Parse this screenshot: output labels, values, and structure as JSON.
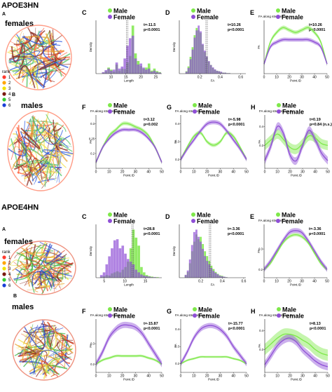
{
  "colors": {
    "male": "#7ee84a",
    "female": "#8f4fd6",
    "overlap": "#9a8fb0",
    "axis": "#222222"
  },
  "legend": {
    "male": "Male",
    "female": "Female"
  },
  "sections": [
    {
      "title": "APOE3HN",
      "letter_left_top": "A",
      "letter_left_bottom": "B",
      "group_top": "females",
      "group_bottom": "males",
      "rank": {
        "title": "rank",
        "items": [
          "1",
          "2",
          "3",
          "4",
          "5",
          "6"
        ],
        "colors": [
          "#ff3b2f",
          "#ffa500",
          "#f2e200",
          "#7a1a10",
          "#33cc33",
          "#1a3fd6"
        ]
      },
      "brain_palette": [
        "#ff5a36",
        "#e8a33a",
        "#f0e04a",
        "#8b2a1e",
        "#55c46a",
        "#2a55e0"
      ],
      "panels": {
        "C": {
          "label": "C",
          "subtitle": "",
          "stat1": "t=-11.5",
          "stat2": "p<0.0001"
        },
        "D": {
          "label": "D",
          "subtitle": "",
          "stat1": "t=10.26",
          "stat2": "p<0.0001"
        },
        "E": {
          "label": "E",
          "subtitle": "FA along streamlines",
          "stat1": "t=10.26",
          "stat2": "p<0.0001"
        },
        "F": {
          "label": "F",
          "subtitle": "FA along streamlines 1",
          "stat1": "t=3.12",
          "stat2": "p=0.002"
        },
        "G": {
          "label": "G",
          "subtitle": "FA along streamlines 2",
          "stat1": "t=-5.98",
          "stat2": "p<0.0001"
        },
        "H": {
          "label": "H",
          "subtitle": "FA along streamlines 6",
          "stat1": "t=0.19",
          "stat2": "p=0.84 (n.s.)"
        }
      }
    },
    {
      "title": "APOE4HN",
      "letter_left_top": "A",
      "letter_left_bottom": "B",
      "group_top": "females",
      "group_bottom": "males",
      "rank": {
        "title": "rank",
        "items": [
          "1",
          "2",
          "3",
          "4",
          "5",
          "6"
        ],
        "colors": [
          "#ff3b2f",
          "#ffa500",
          "#f2e200",
          "#7a1a10",
          "#33cc33",
          "#1a3fd6"
        ]
      },
      "brain_palette": [
        "#e24a2a",
        "#e8a33a",
        "#f0e04a",
        "#8b2a1e",
        "#40b84a",
        "#2a45c8"
      ],
      "panels": {
        "C": {
          "label": "C",
          "subtitle": "",
          "stat1": "t=28.8",
          "stat2": "p<0.0001"
        },
        "D": {
          "label": "D",
          "subtitle": "",
          "stat1": "t=-3.36",
          "stat2": "p<0.0001"
        },
        "E": {
          "label": "E",
          "subtitle": "FA along streamlines",
          "stat1": "t=-3.36",
          "stat2": "p<0.0001"
        },
        "F": {
          "label": "F",
          "subtitle": "FA along streamlines 1",
          "stat1": "t=-15.87",
          "stat2": "p<0.0001"
        },
        "G": {
          "label": "G",
          "subtitle": "FA along streamlines 2",
          "stat1": "t=-15.77",
          "stat2": "p<0.0001"
        },
        "H": {
          "label": "H",
          "subtitle": "FA along streamlines 6",
          "stat1": "t=8.13",
          "stat2": "p<0.0001"
        }
      }
    }
  ],
  "chart_data": [
    {
      "id": "s1_C",
      "type": "bar",
      "xlabel": "Length",
      "ylabel": "Density",
      "xlim": [
        5,
        27
      ],
      "xticks": [
        10,
        15,
        20,
        25
      ],
      "dashed_x": 15.2,
      "bin_start": 7,
      "bin_width": 0.9,
      "series": [
        {
          "name": "Male",
          "values": [
            0.02,
            0.05,
            0.12,
            0.08,
            0.04,
            0.18,
            0.06,
            0.1,
            0.09,
            0.22,
            0.35,
            0.95,
            0.4,
            0.25,
            0.15,
            0.1,
            0.12,
            0.2,
            0.06,
            0.1,
            0.05,
            0.03
          ]
        },
        {
          "name": "Female",
          "values": [
            0.03,
            0.07,
            0.1,
            0.06,
            0.08,
            0.22,
            0.1,
            0.14,
            0.3,
            0.55,
            0.7,
            0.75,
            0.3,
            0.18,
            0.2,
            0.12,
            0.08,
            0.1,
            0.04,
            0.06,
            0.03,
            0.02
          ]
        }
      ]
    },
    {
      "id": "s1_D",
      "type": "bar",
      "xlabel": "FA",
      "ylabel": "Density",
      "xlim": [
        0,
        0.65
      ],
      "xticks": [
        0.2,
        0.4,
        0.6
      ],
      "xticklabels": [
        "0.2",
        "0.4",
        "0.6"
      ],
      "dashed_x": 0.26,
      "bin_start": 0.06,
      "bin_width": 0.02,
      "series": [
        {
          "name": "Male",
          "values": [
            0.05,
            0.15,
            0.35,
            0.55,
            0.8,
            0.95,
            0.9,
            0.85,
            0.6,
            0.45,
            0.35,
            0.25,
            0.18,
            0.12,
            0.08,
            0.06,
            0.05,
            0.03,
            0.02,
            0.02,
            0.01,
            0.01
          ]
        },
        {
          "name": "Female",
          "values": [
            0.04,
            0.12,
            0.3,
            0.5,
            0.75,
            0.9,
            1.0,
            0.88,
            0.62,
            0.48,
            0.36,
            0.26,
            0.18,
            0.13,
            0.09,
            0.06,
            0.05,
            0.04,
            0.02,
            0.02,
            0.01,
            0.01
          ]
        }
      ]
    },
    {
      "id": "s1_E",
      "type": "line",
      "xlabel": "Point.ID",
      "ylabel": "FA",
      "xlim": [
        0,
        50
      ],
      "xticks": [
        0,
        10,
        20,
        30,
        40,
        50
      ],
      "yticks": [],
      "ylim": [
        0.18,
        0.4
      ],
      "x": [
        0,
        5,
        10,
        15,
        20,
        25,
        30,
        35,
        40,
        45,
        50
      ],
      "series": [
        {
          "name": "Male",
          "values": [
            0.22,
            0.31,
            0.35,
            0.37,
            0.36,
            0.35,
            0.36,
            0.37,
            0.35,
            0.31,
            0.22
          ],
          "band": 0.008
        },
        {
          "name": "Female",
          "values": [
            0.22,
            0.29,
            0.31,
            0.32,
            0.32,
            0.32,
            0.32,
            0.32,
            0.31,
            0.29,
            0.22
          ],
          "band": 0.008
        }
      ]
    },
    {
      "id": "s1_F",
      "type": "line",
      "xlabel": "Point.ID",
      "ylabel": "FA",
      "xlim": [
        0,
        50
      ],
      "xticks": [
        0,
        10,
        20,
        30,
        40,
        50
      ],
      "yticks": [
        0.2,
        0.25,
        0.3
      ],
      "ylim": [
        0.15,
        0.33
      ],
      "x": [
        0,
        5,
        10,
        15,
        20,
        25,
        30,
        35,
        40,
        45,
        50
      ],
      "series": [
        {
          "name": "Male",
          "values": [
            0.17,
            0.22,
            0.26,
            0.28,
            0.3,
            0.3,
            0.29,
            0.28,
            0.26,
            0.22,
            0.17
          ],
          "band": 0.006
        },
        {
          "name": "Female",
          "values": [
            0.17,
            0.22,
            0.25,
            0.27,
            0.28,
            0.28,
            0.28,
            0.27,
            0.25,
            0.22,
            0.17
          ],
          "band": 0.006
        }
      ]
    },
    {
      "id": "s1_G",
      "type": "line",
      "xlabel": "Point.ID",
      "ylabel": "FA",
      "xlim": [
        0,
        50
      ],
      "xticks": [
        0,
        10,
        20,
        30,
        40,
        50
      ],
      "yticks": [
        0.2,
        0.3,
        0.4
      ],
      "ylim": [
        0.15,
        0.45
      ],
      "x": [
        0,
        5,
        10,
        15,
        20,
        25,
        30,
        35,
        40,
        45,
        50
      ],
      "series": [
        {
          "name": "Male",
          "values": [
            0.2,
            0.27,
            0.33,
            0.35,
            0.3,
            0.28,
            0.3,
            0.35,
            0.33,
            0.27,
            0.2
          ],
          "band": 0.01
        },
        {
          "name": "Female",
          "values": [
            0.2,
            0.26,
            0.31,
            0.36,
            0.4,
            0.41,
            0.4,
            0.36,
            0.31,
            0.26,
            0.2
          ],
          "band": 0.012
        }
      ]
    },
    {
      "id": "s1_H",
      "type": "line",
      "xlabel": "Point.ID",
      "ylabel": "FA",
      "xlim": [
        0,
        50
      ],
      "xticks": [
        0,
        10,
        20,
        30,
        40,
        50
      ],
      "yticks": [
        0.3,
        0.4
      ],
      "ylim": [
        0.18,
        0.46
      ],
      "x": [
        0,
        5,
        10,
        15,
        20,
        25,
        30,
        35,
        40,
        45,
        50
      ],
      "series": [
        {
          "name": "Male",
          "values": [
            0.3,
            0.33,
            0.36,
            0.33,
            0.29,
            0.28,
            0.31,
            0.35,
            0.34,
            0.31,
            0.3
          ],
          "band": 0.025
        },
        {
          "name": "Female",
          "values": [
            0.22,
            0.3,
            0.4,
            0.36,
            0.25,
            0.22,
            0.3,
            0.38,
            0.33,
            0.26,
            0.22
          ],
          "band": 0.02
        }
      ]
    },
    {
      "id": "s2_C",
      "type": "bar",
      "xlabel": "Length",
      "ylabel": "Density",
      "xlim": [
        3,
        19
      ],
      "xticks": [
        5,
        10,
        15
      ],
      "dashed_x": 11.7,
      "bin_start": 4,
      "bin_width": 0.65,
      "series": [
        {
          "name": "Male",
          "values": [
            0.02,
            0.03,
            0.05,
            0.04,
            0.08,
            0.1,
            0.12,
            0.1,
            0.15,
            0.2,
            0.3,
            0.55,
            0.9,
            0.75,
            0.6,
            0.2,
            0.1,
            0.05,
            0.03,
            0.02,
            0.01,
            0.01
          ]
        },
        {
          "name": "Female",
          "values": [
            0.05,
            0.1,
            0.25,
            0.4,
            0.55,
            0.7,
            0.72,
            0.55,
            0.6,
            0.45,
            0.35,
            0.3,
            0.25,
            0.15,
            0.1,
            0.06,
            0.04,
            0.03,
            0.02,
            0.01,
            0.01,
            0.0
          ]
        }
      ]
    },
    {
      "id": "s2_D",
      "type": "bar",
      "xlabel": "FA",
      "ylabel": "Density",
      "xlim": [
        0,
        0.62
      ],
      "xticks": [
        0.2,
        0.4,
        0.6
      ],
      "xticklabels": [
        "0.2",
        "0.4",
        "0.6"
      ],
      "dashed_x": 0.28,
      "bin_start": 0.05,
      "bin_width": 0.02,
      "series": [
        {
          "name": "Male",
          "values": [
            0.05,
            0.12,
            0.3,
            0.55,
            0.75,
            0.9,
            0.8,
            0.85,
            0.7,
            0.55,
            0.45,
            0.35,
            0.25,
            0.18,
            0.12,
            0.08,
            0.05,
            0.04,
            0.02,
            0.01
          ]
        },
        {
          "name": "Female",
          "values": [
            0.06,
            0.15,
            0.38,
            0.68,
            0.95,
            1.0,
            0.85,
            0.75,
            0.6,
            0.45,
            0.35,
            0.28,
            0.2,
            0.14,
            0.1,
            0.07,
            0.04,
            0.03,
            0.02,
            0.01
          ]
        }
      ]
    },
    {
      "id": "s2_E",
      "type": "line",
      "xlabel": "Point.ID",
      "ylabel": "FA",
      "xlim": [
        0,
        50
      ],
      "xticks": [
        0,
        10,
        20,
        30,
        40,
        50
      ],
      "yticks": [
        0.2,
        0.3
      ],
      "ylim": [
        0.16,
        0.42
      ],
      "x": [
        0,
        5,
        10,
        15,
        20,
        25,
        30,
        35,
        40,
        45,
        50
      ],
      "series": [
        {
          "name": "Male",
          "values": [
            0.2,
            0.23,
            0.28,
            0.33,
            0.36,
            0.37,
            0.36,
            0.33,
            0.28,
            0.23,
            0.2
          ],
          "band": 0.008
        },
        {
          "name": "Female",
          "values": [
            0.2,
            0.24,
            0.29,
            0.34,
            0.38,
            0.39,
            0.38,
            0.34,
            0.29,
            0.24,
            0.2
          ],
          "band": 0.012
        }
      ]
    },
    {
      "id": "s2_F",
      "type": "line",
      "xlabel": "Point.ID",
      "ylabel": "FA",
      "xlim": [
        0,
        50
      ],
      "xticks": [
        0,
        10,
        20,
        30,
        40,
        50
      ],
      "yticks": [
        0.2,
        0.3
      ],
      "ylim": [
        0.16,
        0.42
      ],
      "x": [
        0,
        5,
        10,
        15,
        20,
        25,
        30,
        35,
        40,
        45,
        50
      ],
      "series": [
        {
          "name": "Male",
          "values": [
            0.2,
            0.22,
            0.23,
            0.24,
            0.24,
            0.24,
            0.24,
            0.24,
            0.23,
            0.22,
            0.2
          ],
          "band": 0.006
        },
        {
          "name": "Female",
          "values": [
            0.2,
            0.26,
            0.33,
            0.37,
            0.39,
            0.39,
            0.38,
            0.35,
            0.3,
            0.25,
            0.2
          ],
          "band": 0.015
        }
      ]
    },
    {
      "id": "s2_G",
      "type": "line",
      "xlabel": "Point.ID",
      "ylabel": "FA",
      "xlim": [
        0,
        50
      ],
      "xticks": [
        0,
        10,
        20,
        30,
        40,
        50
      ],
      "yticks": [
        0.2,
        0.3,
        0.4
      ],
      "ylim": [
        0.15,
        0.46
      ],
      "x": [
        0,
        5,
        10,
        15,
        20,
        25,
        30,
        35,
        40,
        45,
        50
      ],
      "series": [
        {
          "name": "Male",
          "values": [
            0.2,
            0.22,
            0.23,
            0.24,
            0.24,
            0.24,
            0.24,
            0.24,
            0.23,
            0.22,
            0.2
          ],
          "band": 0.006
        },
        {
          "name": "Female",
          "values": [
            0.2,
            0.27,
            0.35,
            0.4,
            0.42,
            0.42,
            0.4,
            0.36,
            0.3,
            0.25,
            0.2
          ],
          "band": 0.015
        }
      ]
    },
    {
      "id": "s2_H",
      "type": "line",
      "xlabel": "Point.ID",
      "ylabel": "FA",
      "xlim": [
        0,
        50
      ],
      "xticks": [
        0,
        10,
        20,
        30,
        40,
        50
      ],
      "yticks": [
        0.3,
        0.4
      ],
      "ylim": [
        0.18,
        0.46
      ],
      "x": [
        0,
        5,
        10,
        15,
        20,
        25,
        30,
        35,
        40,
        45,
        50
      ],
      "series": [
        {
          "name": "Male",
          "values": [
            0.3,
            0.33,
            0.36,
            0.38,
            0.38,
            0.37,
            0.35,
            0.33,
            0.3,
            0.28,
            0.27
          ],
          "band": 0.03
        },
        {
          "name": "Female",
          "values": [
            0.22,
            0.27,
            0.32,
            0.35,
            0.36,
            0.34,
            0.3,
            0.27,
            0.24,
            0.22,
            0.21
          ],
          "band": 0.02
        }
      ]
    }
  ]
}
